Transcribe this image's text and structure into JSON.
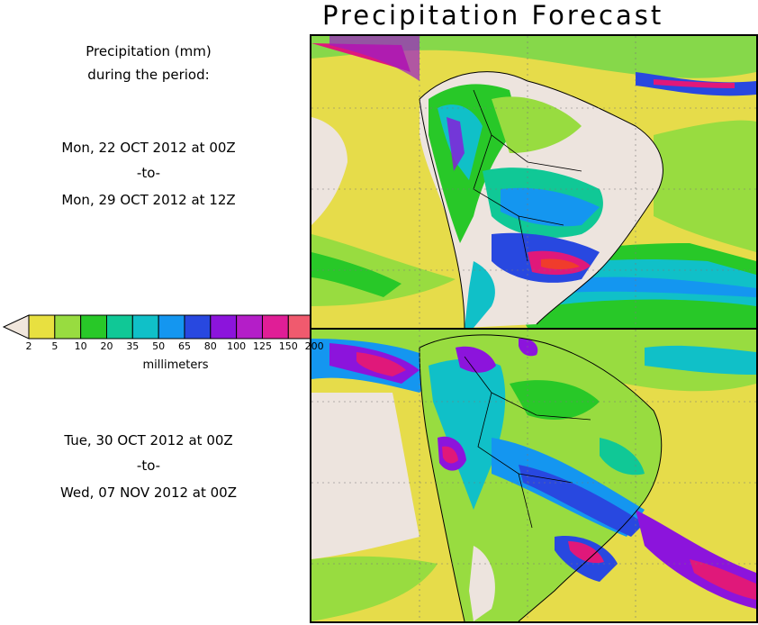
{
  "title": "Precipitation Forecast",
  "header": {
    "line1": "Precipitation (mm)",
    "line2": "during the period:"
  },
  "period1": {
    "start": "Mon, 22 OCT 2012 at 00Z",
    "sep": "-to-",
    "end": "Mon, 29 OCT 2012 at 12Z"
  },
  "period2": {
    "start": "Tue, 30 OCT 2012 at 00Z",
    "sep": "-to-",
    "end": "Wed, 07 NOV 2012 at 00Z"
  },
  "legend": {
    "units": "millimeters",
    "ticks": [
      "2",
      "5",
      "10",
      "20",
      "35",
      "50",
      "65",
      "80",
      "100",
      "125",
      "150",
      "200"
    ],
    "colors": [
      "#f0e6dc",
      "#e8e040",
      "#98dc40",
      "#28c828",
      "#10c896",
      "#10c0c8",
      "#1496f0",
      "#2848e0",
      "#8c14dc",
      "#b41ec8",
      "#e01e96",
      "#f05a6e",
      "#f03c2c"
    ]
  },
  "colors": {
    "sand": "#ede4de",
    "ocean_yellow": "#e2d63a"
  }
}
